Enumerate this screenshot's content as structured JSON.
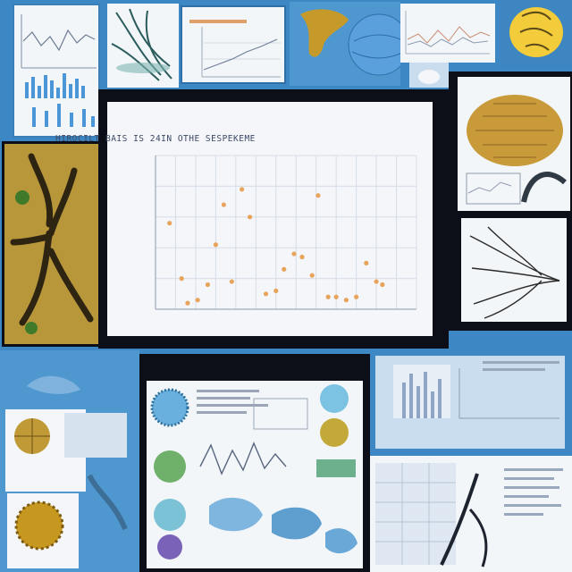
{
  "page": {
    "background": "#3d88c4",
    "style": "collage of scientific figures and specimen photos",
    "accent_colors": {
      "frame": "#0c0f17",
      "paper": "#f4f6f9",
      "tile_blue": "#4f98cf",
      "marker": "#e8a45a"
    }
  },
  "main_chart": {
    "title": "HIROCILT BAIS IS 24IN OTHE SESPEKEME",
    "chart_data": {
      "type": "scatter",
      "title": "HIROCILT BAIS IS 24IN OTHE SESPEKEME",
      "xlabel": "",
      "ylabel": "",
      "xlim": [
        0,
        13
      ],
      "ylim": [
        0,
        5
      ],
      "grid": true,
      "series": [
        {
          "color": "#e8a45a",
          "points": [
            [
              0.7,
              2.8
            ],
            [
              1.3,
              1.0
            ],
            [
              1.6,
              0.2
            ],
            [
              2.1,
              0.3
            ],
            [
              2.6,
              0.8
            ],
            [
              3.0,
              2.1
            ],
            [
              3.4,
              3.4
            ],
            [
              3.8,
              0.9
            ],
            [
              4.3,
              3.9
            ],
            [
              4.7,
              3.0
            ],
            [
              5.5,
              0.5
            ],
            [
              6.0,
              0.6
            ],
            [
              6.4,
              1.3
            ],
            [
              6.9,
              1.8
            ],
            [
              7.3,
              1.7
            ],
            [
              7.8,
              1.1
            ],
            [
              8.1,
              3.7
            ],
            [
              8.6,
              0.4
            ],
            [
              9.0,
              0.4
            ],
            [
              9.5,
              0.3
            ],
            [
              10.0,
              0.4
            ],
            [
              10.5,
              1.5
            ],
            [
              11.0,
              0.9
            ],
            [
              11.3,
              0.8
            ]
          ]
        }
      ]
    }
  }
}
